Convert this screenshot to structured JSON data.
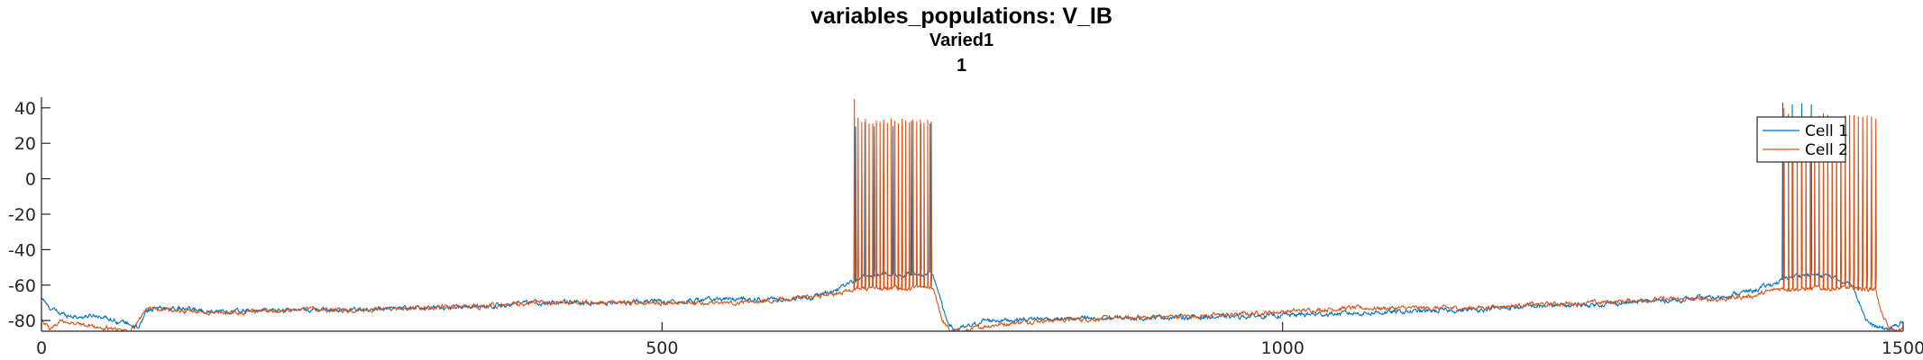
{
  "chart_data": {
    "type": "line",
    "title": "variables_populations: V_IB",
    "subtitle": [
      "Varied1",
      "1"
    ],
    "xlim": [
      0,
      1500
    ],
    "ylim": [
      -86,
      46
    ],
    "xticks": [
      0,
      500,
      1000,
      1500
    ],
    "yticks": [
      -80,
      -60,
      -40,
      -20,
      0,
      20,
      40
    ],
    "legend_position": "top-right",
    "grid": false,
    "series": [
      {
        "name": "Cell 1",
        "color": "#0072BD",
        "x": [
          0,
          5,
          15,
          30,
          45,
          60,
          72,
          78,
          85,
          100,
          150,
          200,
          250,
          300,
          350,
          400,
          450,
          500,
          550,
          590,
          620,
          640,
          655,
          665,
          680,
          700,
          718,
          722,
          728,
          735,
          745,
          760,
          800,
          850,
          900,
          950,
          1000,
          1050,
          1100,
          1150,
          1200,
          1250,
          1300,
          1350,
          1380,
          1400,
          1410,
          1420,
          1440,
          1460,
          1465,
          1470,
          1475,
          1480,
          1490,
          1500
        ],
        "y": [
          -67,
          -72,
          -76,
          -78,
          -77,
          -80,
          -82,
          -85,
          -74,
          -73,
          -75,
          -74,
          -74,
          -73,
          -72,
          -70,
          -70,
          -69,
          -68,
          -68,
          -67,
          -63,
          -58,
          -55,
          -54,
          -54,
          -54,
          -62,
          -78,
          -85,
          -84,
          -80,
          -79,
          -79,
          -78,
          -78,
          -77,
          -76,
          -75,
          -74,
          -72,
          -71,
          -69,
          -67,
          -63,
          -58,
          -55,
          -54,
          -55,
          -60,
          -70,
          -79,
          -83,
          -84,
          -85,
          -80
        ],
        "spikes": {
          "segments": [
            {
              "start": 656,
              "end": 716,
              "count": 9,
              "peak": 33
            },
            {
              "start": 1403,
              "end": 1426,
              "count": 4,
              "peak": 44
            }
          ],
          "trough": -50
        }
      },
      {
        "name": "Cell 2",
        "color": "#D95319",
        "x": [
          0,
          8,
          15,
          30,
          45,
          60,
          72,
          85,
          100,
          150,
          200,
          250,
          300,
          350,
          400,
          450,
          500,
          550,
          600,
          640,
          655,
          718,
          722,
          726,
          732,
          745,
          760,
          800,
          850,
          900,
          950,
          1000,
          1050,
          1100,
          1150,
          1200,
          1250,
          1300,
          1350,
          1380,
          1400,
          1478,
          1482,
          1488,
          1495,
          1500
        ],
        "y": [
          -80,
          -85,
          -80,
          -82,
          -84,
          -85,
          -86,
          -73,
          -74,
          -76,
          -74,
          -74,
          -73,
          -72,
          -70,
          -70,
          -70,
          -70,
          -68,
          -65,
          -62,
          -62,
          -70,
          -80,
          -86,
          -86,
          -83,
          -80,
          -79,
          -78,
          -77,
          -75,
          -73,
          -73,
          -73,
          -71,
          -70,
          -68,
          -68,
          -66,
          -62,
          -62,
          -75,
          -84,
          -86,
          -85
        ],
        "spikes": {
          "segments": [
            {
              "start": 655,
              "end": 717,
              "count": 22,
              "peak": 35,
              "first_peak": 45
            },
            {
              "start": 1404,
              "end": 1478,
              "count": 22,
              "peak": 37,
              "first_peak": 40
            }
          ],
          "trough": -52
        }
      }
    ]
  }
}
